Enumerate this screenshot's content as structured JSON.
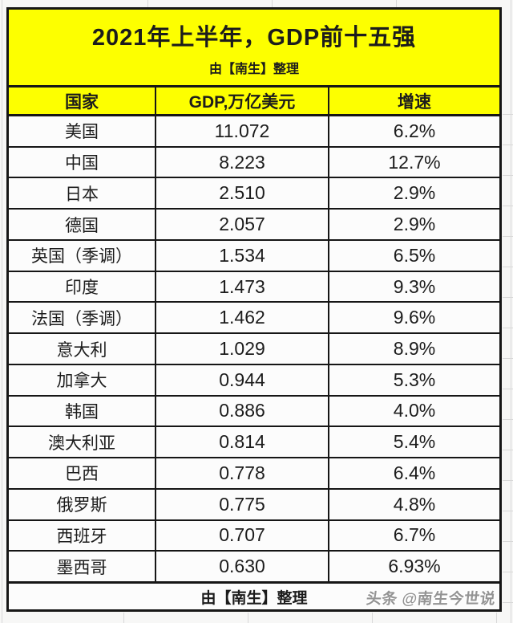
{
  "header": {
    "title": "2021年上半年，GDP前十五强",
    "subtitle": "由【南生】整理"
  },
  "columns": {
    "country": "国家",
    "gdp": "GDP,万亿美元",
    "growth": "增速"
  },
  "rows": [
    {
      "country": "美国",
      "gdp": "11.072",
      "growth": "6.2%"
    },
    {
      "country": "中国",
      "gdp": "8.223",
      "growth": "12.7%"
    },
    {
      "country": "日本",
      "gdp": "2.510",
      "growth": "2.9%"
    },
    {
      "country": "德国",
      "gdp": "2.057",
      "growth": "2.9%"
    },
    {
      "country": "英国（季调）",
      "gdp": "1.534",
      "growth": "6.5%"
    },
    {
      "country": "印度",
      "gdp": "1.473",
      "growth": "9.3%"
    },
    {
      "country": "法国（季调）",
      "gdp": "1.462",
      "growth": "9.6%"
    },
    {
      "country": "意大利",
      "gdp": "1.029",
      "growth": "8.9%"
    },
    {
      "country": "加拿大",
      "gdp": "0.944",
      "growth": "5.3%"
    },
    {
      "country": "韩国",
      "gdp": "0.886",
      "growth": "4.0%"
    },
    {
      "country": "澳大利亚",
      "gdp": "0.814",
      "growth": "5.4%"
    },
    {
      "country": "巴西",
      "gdp": "0.778",
      "growth": "6.4%"
    },
    {
      "country": "俄罗斯",
      "gdp": "0.775",
      "growth": "4.8%"
    },
    {
      "country": "西班牙",
      "gdp": "0.707",
      "growth": "6.7%"
    },
    {
      "country": "墨西哥",
      "gdp": "0.630",
      "growth": "6.93%"
    }
  ],
  "footer": {
    "credit": "由【南生】整理",
    "watermark": "头条 @南生今世说"
  },
  "colors": {
    "header_yellow": "#fdff00",
    "border_black": "#161616",
    "row_bg": "#fcfcfc",
    "text": "#1c1c1c",
    "watermark_gray": "#949494"
  },
  "chart_data": {
    "type": "table",
    "title": "2021年上半年，GDP前十五强",
    "subtitle": "由【南生】整理",
    "columns": [
      "国家",
      "GDP,万亿美元",
      "增速"
    ],
    "rows": [
      {
        "country": "美国",
        "gdp_trillion_usd": 11.072,
        "growth_percent": 6.2
      },
      {
        "country": "中国",
        "gdp_trillion_usd": 8.223,
        "growth_percent": 12.7
      },
      {
        "country": "日本",
        "gdp_trillion_usd": 2.51,
        "growth_percent": 2.9
      },
      {
        "country": "德国",
        "gdp_trillion_usd": 2.057,
        "growth_percent": 2.9
      },
      {
        "country": "英国（季调）",
        "gdp_trillion_usd": 1.534,
        "growth_percent": 6.5
      },
      {
        "country": "印度",
        "gdp_trillion_usd": 1.473,
        "growth_percent": 9.3
      },
      {
        "country": "法国（季调）",
        "gdp_trillion_usd": 1.462,
        "growth_percent": 9.6
      },
      {
        "country": "意大利",
        "gdp_trillion_usd": 1.029,
        "growth_percent": 8.9
      },
      {
        "country": "加拿大",
        "gdp_trillion_usd": 0.944,
        "growth_percent": 5.3
      },
      {
        "country": "韩国",
        "gdp_trillion_usd": 0.886,
        "growth_percent": 4.0
      },
      {
        "country": "澳大利亚",
        "gdp_trillion_usd": 0.814,
        "growth_percent": 5.4
      },
      {
        "country": "巴西",
        "gdp_trillion_usd": 0.778,
        "growth_percent": 6.4
      },
      {
        "country": "俄罗斯",
        "gdp_trillion_usd": 0.775,
        "growth_percent": 4.8
      },
      {
        "country": "西班牙",
        "gdp_trillion_usd": 0.707,
        "growth_percent": 6.7
      },
      {
        "country": "墨西哥",
        "gdp_trillion_usd": 0.63,
        "growth_percent": 6.93
      }
    ],
    "credit": "由【南生】整理",
    "watermark": "头条 @南生今世说"
  }
}
